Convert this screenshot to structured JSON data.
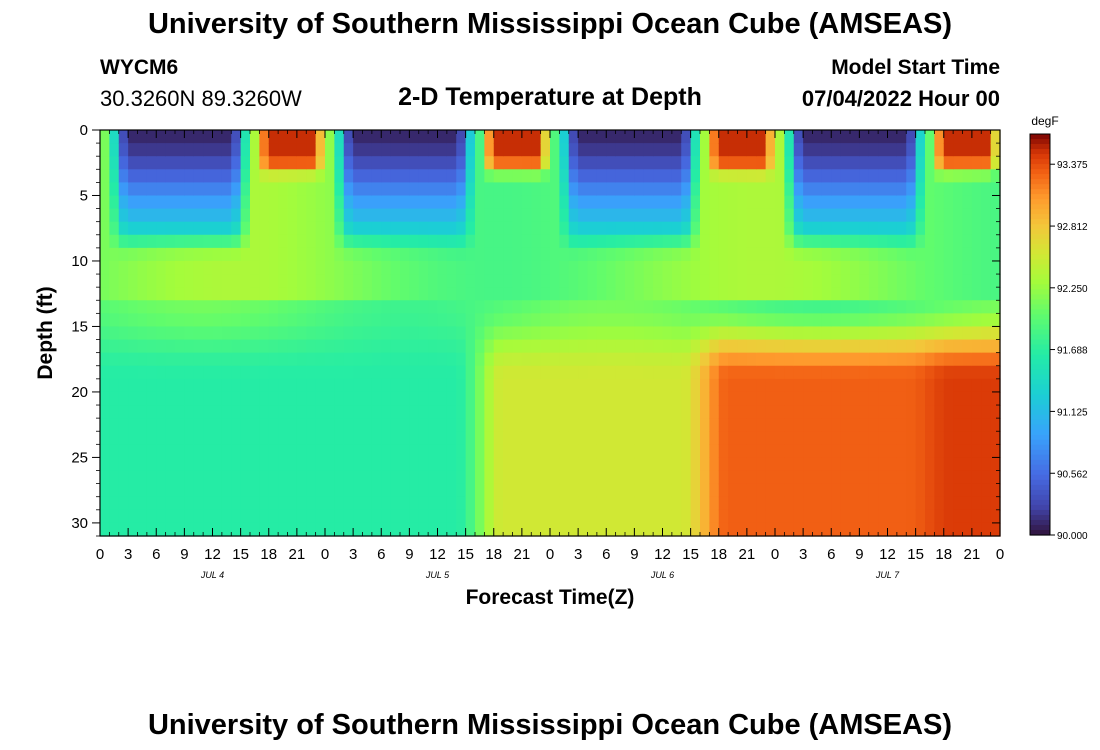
{
  "header": {
    "title": "University of Southern Mississippi Ocean Cube (AMSEAS)",
    "station": "WYCM6",
    "coords": "30.3260N  89.3260W",
    "plot_title": "2-D Temperature at Depth",
    "model_start_label": "Model Start Time",
    "model_start_value": "07/04/2022 Hour 00"
  },
  "footer": {
    "title": "University of Southern Mississippi Ocean Cube (AMSEAS)"
  },
  "chart_data": {
    "type": "heatmap",
    "title": "2-D Temperature at Depth",
    "xlabel": "Forecast Time(Z)",
    "ylabel": "Depth (ft)",
    "x_ticks": [
      "0",
      "3",
      "6",
      "9",
      "12",
      "15",
      "18",
      "21",
      "0",
      "3",
      "6",
      "9",
      "12",
      "15",
      "18",
      "21",
      "0",
      "3",
      "6",
      "9",
      "12",
      "15",
      "18",
      "21",
      "0",
      "3",
      "6",
      "9",
      "12",
      "15",
      "18",
      "21",
      "0"
    ],
    "x_range_hours": [
      0,
      96
    ],
    "day_labels": [
      {
        "label": "JUL 4",
        "hour": 12
      },
      {
        "label": "JUL 5",
        "hour": 36
      },
      {
        "label": "JUL 6",
        "hour": 60
      },
      {
        "label": "JUL 7",
        "hour": 84
      }
    ],
    "y_ticks": [
      0,
      5,
      10,
      15,
      20,
      25,
      30
    ],
    "ylim": [
      0,
      31
    ],
    "colorbar": {
      "unit": "degF",
      "range": [
        90.0,
        93.65
      ],
      "tick_labels": [
        "93.375",
        "92.812",
        "92.250",
        "91.688",
        "91.125",
        "90.562",
        "90.000"
      ],
      "tick_values": [
        93.375,
        92.812,
        92.25,
        91.688,
        91.125,
        90.562,
        90.0
      ]
    },
    "grid": false
  }
}
